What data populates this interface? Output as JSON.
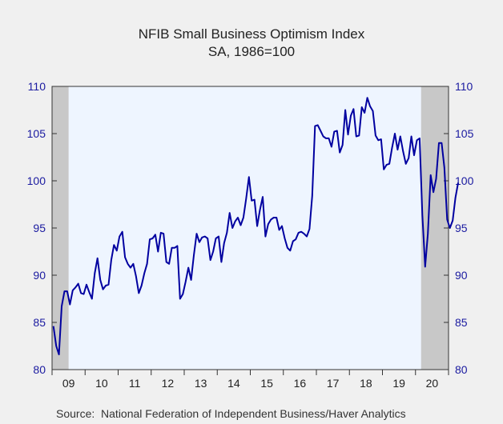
{
  "colors": {
    "background": "#f0f0f0",
    "plot_background": "#eef5ff",
    "recession_shade": "#c8c8c8",
    "line": "#0000a0",
    "tick_text": "#1a1aa0"
  },
  "chart_data": {
    "type": "line",
    "title": "NFIB Small Business Optimism Index",
    "subtitle": "SA, 1986=100",
    "source": "Source:  National Federation of Independent Business/Haver Analytics",
    "xlabel": "",
    "ylabel": "",
    "ylim": [
      80,
      110
    ],
    "yticks": [
      80,
      85,
      90,
      95,
      100,
      105,
      110
    ],
    "x_tick_labels": [
      "09",
      "10",
      "11",
      "12",
      "13",
      "14",
      "15",
      "16",
      "17",
      "18",
      "19",
      "20"
    ],
    "x_start_year": 2009,
    "x_end_year": 2021,
    "grid": false,
    "recession_shading": [
      [
        2009.0,
        2009.5
      ],
      [
        2020.17,
        2021.0
      ]
    ],
    "series": [
      {
        "values": [
          84.6,
          82.5,
          81.6,
          86.7,
          88.3,
          88.3,
          86.9,
          88.4,
          88.7,
          89.1,
          88.1,
          88.0,
          89.0,
          88.2,
          87.5,
          90.2,
          91.8,
          89.5,
          88.5,
          88.9,
          89.0,
          91.6,
          93.2,
          92.6,
          94.1,
          94.6,
          91.9,
          91.2,
          90.8,
          91.2,
          89.9,
          88.1,
          88.9,
          90.2,
          91.2,
          93.8,
          93.9,
          94.3,
          92.5,
          94.5,
          94.4,
          91.4,
          91.2,
          92.9,
          92.9,
          93.1,
          87.5,
          88.0,
          89.3,
          90.8,
          89.5,
          92.1,
          94.4,
          93.5,
          94.0,
          94.1,
          93.9,
          91.6,
          92.5,
          93.9,
          94.1,
          91.4,
          93.4,
          94.5,
          96.6,
          95.0,
          95.7,
          96.1,
          95.3,
          96.1,
          98.1,
          100.4,
          97.9,
          98.0,
          95.2,
          96.9,
          98.3,
          94.1,
          95.4,
          95.9,
          96.1,
          96.1,
          94.8,
          95.2,
          93.9,
          92.9,
          92.6,
          93.6,
          93.8,
          94.5,
          94.6,
          94.4,
          94.1,
          94.9,
          98.4,
          105.8,
          105.9,
          105.3,
          104.7,
          104.5,
          104.5,
          103.6,
          105.2,
          105.3,
          103.0,
          103.8,
          107.5,
          104.9,
          106.9,
          107.6,
          104.7,
          104.8,
          107.8,
          107.2,
          108.8,
          107.9,
          107.4,
          104.8,
          104.3,
          104.4,
          101.2,
          101.7,
          101.8,
          103.5,
          105.0,
          103.3,
          104.7,
          103.1,
          101.8,
          102.4,
          104.7,
          102.7,
          104.3,
          104.5,
          96.4,
          90.9,
          94.4,
          100.6,
          98.8,
          100.2,
          104.0,
          104.0,
          101.4,
          95.9,
          95.0,
          95.8,
          98.2,
          99.8
        ]
      }
    ]
  }
}
